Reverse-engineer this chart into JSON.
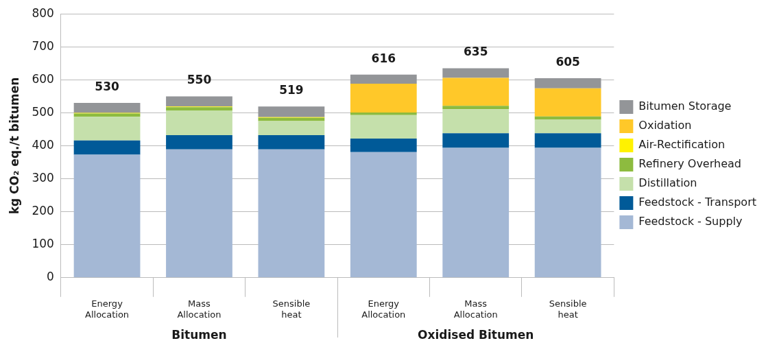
{
  "chart_data": {
    "type": "bar",
    "stacked": true,
    "ylabel": "kg CO₂ eq./t bitumen",
    "categories": [
      "Energy Allocation",
      "Mass Allocation",
      "Sensible heat",
      "Energy Allocation",
      "Mass Allocation",
      "Sensible heat"
    ],
    "series": [
      {
        "name": "Feedstock - Supply",
        "color": "#a4b8d5",
        "values": [
          373,
          389,
          389,
          381,
          394,
          394
        ]
      },
      {
        "name": "Feedstock - Transport",
        "color": "#005a98",
        "values": [
          43,
          43,
          43,
          41,
          44,
          44
        ]
      },
      {
        "name": "Distillation",
        "color": "#c5e0ab",
        "values": [
          72,
          75,
          43,
          71,
          73,
          41
        ]
      },
      {
        "name": "Refinery Overhead",
        "color": "#8dbb3f",
        "values": [
          10,
          10,
          10,
          8,
          10,
          10
        ]
      },
      {
        "name": "Air-Rectification",
        "color": "#fff200",
        "values": [
          2,
          2,
          2,
          0,
          0,
          0
        ]
      },
      {
        "name": "Oxidation",
        "color": "#ffc829",
        "values": [
          0,
          0,
          0,
          87,
          85,
          85
        ]
      },
      {
        "name": "Bitumen Storage",
        "color": "#939598",
        "values": [
          30,
          31,
          32,
          28,
          29,
          31
        ]
      }
    ],
    "totals": [
      "530",
      "550",
      "519",
      "616",
      "635",
      "605"
    ],
    "annotations": [
      "Bitumen",
      "Oxidised Bitumen"
    ],
    "ylim": [
      0,
      800
    ],
    "yticks": [
      0,
      100,
      200,
      300,
      400,
      500,
      600,
      700,
      800
    ],
    "grid": "y",
    "legend": "right"
  }
}
